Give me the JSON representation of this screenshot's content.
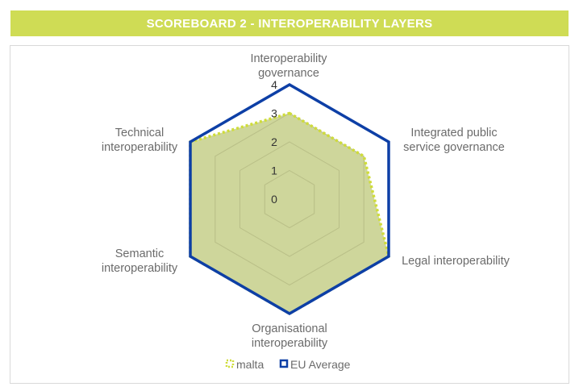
{
  "header": {
    "title": "SCOREBOARD 2 - INTEROPERABILITY LAYERS"
  },
  "colors": {
    "header_bg": "#cfdc55",
    "malta_fill": "#c6cf8a",
    "malta_line": "#cfdc3a",
    "eu_line": "#0d3fa6",
    "grid": "#d9d9c0"
  },
  "chart_data": {
    "type": "radar",
    "title": "",
    "categories": [
      [
        "Interoperability",
        "governance"
      ],
      [
        "Integrated public",
        "service governance"
      ],
      [
        "Legal interoperability"
      ],
      [
        "Organisational",
        "interoperability"
      ],
      [
        "Semantic",
        "interoperability"
      ],
      [
        "Technical",
        "interoperability"
      ]
    ],
    "rlim": [
      0,
      4
    ],
    "ticks": [
      "0",
      "1",
      "2",
      "3",
      "4"
    ],
    "grid": true,
    "legend_position": "bottom",
    "series": [
      {
        "name": "malta",
        "values": [
          3,
          3,
          4,
          4,
          4,
          4
        ],
        "style": "dotted-filled"
      },
      {
        "name": "EU Average",
        "values": [
          4,
          4,
          4,
          4,
          4,
          4
        ],
        "style": "solid"
      }
    ]
  }
}
